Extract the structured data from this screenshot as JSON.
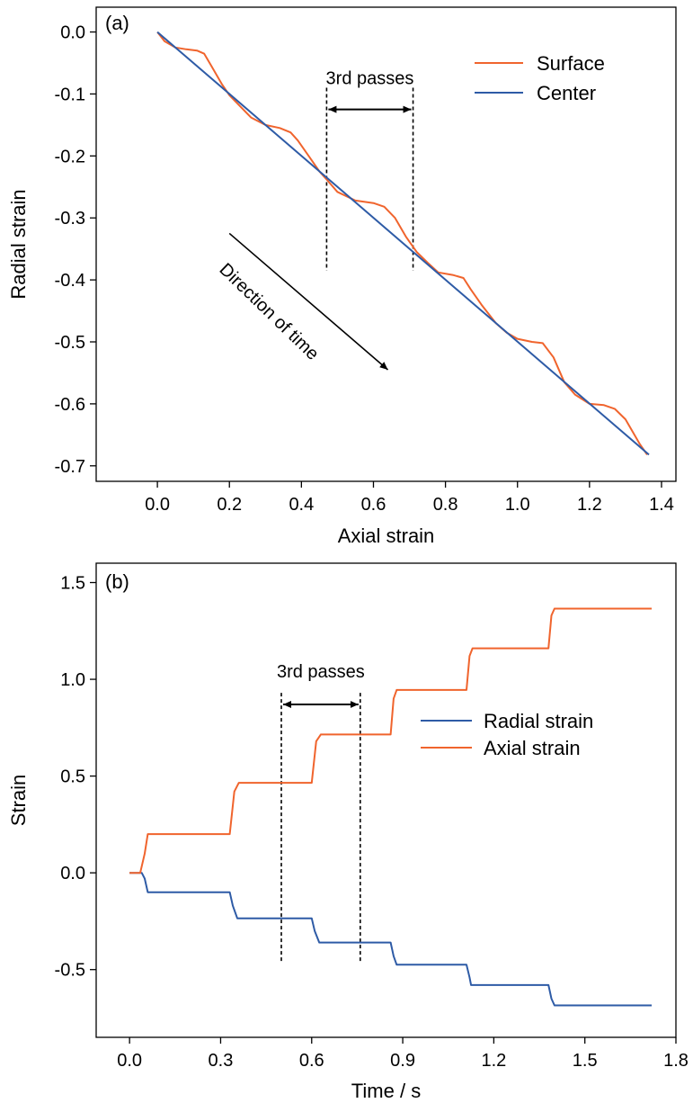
{
  "chart_data": [
    {
      "type": "line",
      "panel_label": "(a)",
      "xlabel": "Axial strain",
      "ylabel": "Radial strain",
      "xlim": [
        -0.17,
        1.44
      ],
      "ylim": [
        -0.725,
        0.04
      ],
      "x_ticks": [
        0.0,
        0.2,
        0.4,
        0.6,
        0.8,
        1.0,
        1.2,
        1.4
      ],
      "x_tick_labels": [
        "0.0",
        "0.2",
        "0.4",
        "0.6",
        "0.8",
        "1.0",
        "1.2",
        "1.4"
      ],
      "y_ticks": [
        0.0,
        -0.1,
        -0.2,
        -0.3,
        -0.4,
        -0.5,
        -0.6,
        -0.7
      ],
      "y_tick_labels": [
        "0.0",
        "-0.1",
        "-0.2",
        "-0.3",
        "-0.4",
        "-0.5",
        "-0.6",
        "-0.7"
      ],
      "grid": false,
      "legend_position": "top-right",
      "series": [
        {
          "name": "Surface",
          "color": "#f0642d",
          "points": [
            [
              0.0,
              0.0
            ],
            [
              0.02,
              -0.015
            ],
            [
              0.05,
              -0.025
            ],
            [
              0.08,
              -0.028
            ],
            [
              0.11,
              -0.03
            ],
            [
              0.13,
              -0.035
            ],
            [
              0.15,
              -0.055
            ],
            [
              0.18,
              -0.085
            ],
            [
              0.2,
              -0.102
            ],
            [
              0.23,
              -0.12
            ],
            [
              0.26,
              -0.138
            ],
            [
              0.3,
              -0.15
            ],
            [
              0.34,
              -0.155
            ],
            [
              0.37,
              -0.162
            ],
            [
              0.39,
              -0.175
            ],
            [
              0.42,
              -0.2
            ],
            [
              0.45,
              -0.225
            ],
            [
              0.47,
              -0.238
            ],
            [
              0.5,
              -0.258
            ],
            [
              0.55,
              -0.272
            ],
            [
              0.6,
              -0.276
            ],
            [
              0.63,
              -0.282
            ],
            [
              0.66,
              -0.3
            ],
            [
              0.69,
              -0.33
            ],
            [
              0.72,
              -0.355
            ],
            [
              0.75,
              -0.372
            ],
            [
              0.78,
              -0.388
            ],
            [
              0.82,
              -0.392
            ],
            [
              0.85,
              -0.397
            ],
            [
              0.87,
              -0.415
            ],
            [
              0.9,
              -0.44
            ],
            [
              0.94,
              -0.47
            ],
            [
              0.97,
              -0.485
            ],
            [
              1.0,
              -0.495
            ],
            [
              1.04,
              -0.5
            ],
            [
              1.07,
              -0.502
            ],
            [
              1.1,
              -0.525
            ],
            [
              1.13,
              -0.565
            ],
            [
              1.16,
              -0.585
            ],
            [
              1.2,
              -0.6
            ],
            [
              1.24,
              -0.602
            ],
            [
              1.27,
              -0.608
            ],
            [
              1.3,
              -0.625
            ],
            [
              1.34,
              -0.665
            ],
            [
              1.36,
              -0.682
            ]
          ]
        },
        {
          "name": "Center",
          "color": "#2e5ba6",
          "points": [
            [
              0.0,
              0.0
            ],
            [
              1.365,
              -0.682
            ]
          ]
        }
      ],
      "annotations": [
        {
          "text": "3rd passes",
          "bracket_x": [
            0.47,
            0.71
          ],
          "bracket_y": -0.125,
          "dashed_x": [
            0.47,
            0.71
          ],
          "dashed_y_range": [
            -0.09,
            -0.385
          ]
        },
        {
          "text": "Direction of time",
          "arrow_from": [
            0.2,
            -0.325
          ],
          "arrow_to": [
            0.64,
            -0.545
          ]
        }
      ]
    },
    {
      "type": "line",
      "panel_label": "(b)",
      "xlabel": "Time / s",
      "ylabel": "Strain",
      "xlim": [
        -0.11,
        1.8
      ],
      "ylim": [
        -0.85,
        1.6
      ],
      "x_ticks": [
        0.0,
        0.3,
        0.6,
        0.9,
        1.2,
        1.5,
        1.8
      ],
      "x_tick_labels": [
        "0.0",
        "0.3",
        "0.6",
        "0.9",
        "1.2",
        "1.5",
        "1.8"
      ],
      "y_ticks": [
        1.5,
        1.0,
        0.5,
        0.0,
        -0.5
      ],
      "y_tick_labels": [
        "1.5",
        "1.0",
        "0.5",
        "0.0",
        "-0.5"
      ],
      "grid": false,
      "legend_position": "center-right",
      "series": [
        {
          "name": "Radial strain",
          "color": "#2e5ba6",
          "points": [
            [
              0.0,
              0.0
            ],
            [
              0.04,
              0.0
            ],
            [
              0.05,
              -0.03
            ],
            [
              0.06,
              -0.1
            ],
            [
              0.33,
              -0.1
            ],
            [
              0.34,
              -0.17
            ],
            [
              0.355,
              -0.235
            ],
            [
              0.6,
              -0.235
            ],
            [
              0.61,
              -0.3
            ],
            [
              0.625,
              -0.36
            ],
            [
              0.86,
              -0.36
            ],
            [
              0.87,
              -0.43
            ],
            [
              0.88,
              -0.475
            ],
            [
              1.11,
              -0.475
            ],
            [
              1.12,
              -0.54
            ],
            [
              1.125,
              -0.58
            ],
            [
              1.38,
              -0.58
            ],
            [
              1.39,
              -0.65
            ],
            [
              1.4,
              -0.685
            ],
            [
              1.72,
              -0.685
            ]
          ]
        },
        {
          "name": "Axial strain",
          "color": "#f0642d",
          "points": [
            [
              0.0,
              0.0
            ],
            [
              0.035,
              0.0
            ],
            [
              0.05,
              0.1
            ],
            [
              0.06,
              0.2
            ],
            [
              0.33,
              0.2
            ],
            [
              0.345,
              0.42
            ],
            [
              0.36,
              0.465
            ],
            [
              0.6,
              0.465
            ],
            [
              0.615,
              0.68
            ],
            [
              0.63,
              0.715
            ],
            [
              0.86,
              0.715
            ],
            [
              0.87,
              0.9
            ],
            [
              0.88,
              0.945
            ],
            [
              1.11,
              0.945
            ],
            [
              1.12,
              1.12
            ],
            [
              1.13,
              1.16
            ],
            [
              1.38,
              1.16
            ],
            [
              1.39,
              1.33
            ],
            [
              1.4,
              1.365
            ],
            [
              1.72,
              1.365
            ]
          ]
        }
      ],
      "annotations": [
        {
          "text": "3rd passes",
          "bracket_x": [
            0.5,
            0.76
          ],
          "bracket_y": 0.87,
          "dashed_x": [
            0.5,
            0.76
          ],
          "dashed_y_range": [
            0.93,
            -0.46
          ]
        }
      ]
    }
  ]
}
